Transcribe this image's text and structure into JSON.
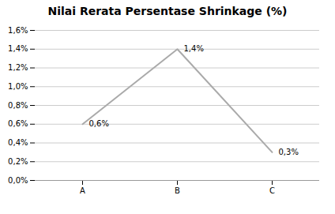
{
  "chart_data": {
    "type": "line",
    "title": "Nilai Rerata Persentase Shrinkage (%)",
    "categories": [
      "A",
      "B",
      "C"
    ],
    "values": [
      0.006,
      0.014,
      0.003
    ],
    "value_labels": [
      "0,6%",
      "1,4%",
      "0,3%"
    ],
    "data_labels": true,
    "color": "#aaaaaa",
    "ylim": [
      0.0,
      0.016
    ],
    "yticks": [
      {
        "value": 0.0,
        "label": "0,0%"
      },
      {
        "value": 0.002,
        "label": "0,2%"
      },
      {
        "value": 0.004,
        "label": "0,4%"
      },
      {
        "value": 0.006,
        "label": "0,6%"
      },
      {
        "value": 0.008,
        "label": "0,8%"
      },
      {
        "value": 0.01,
        "label": "1,0%"
      },
      {
        "value": 0.012,
        "label": "1,2%"
      },
      {
        "value": 0.014,
        "label": "1,4%"
      },
      {
        "value": 0.016,
        "label": "1,6%"
      }
    ],
    "grid": true
  }
}
